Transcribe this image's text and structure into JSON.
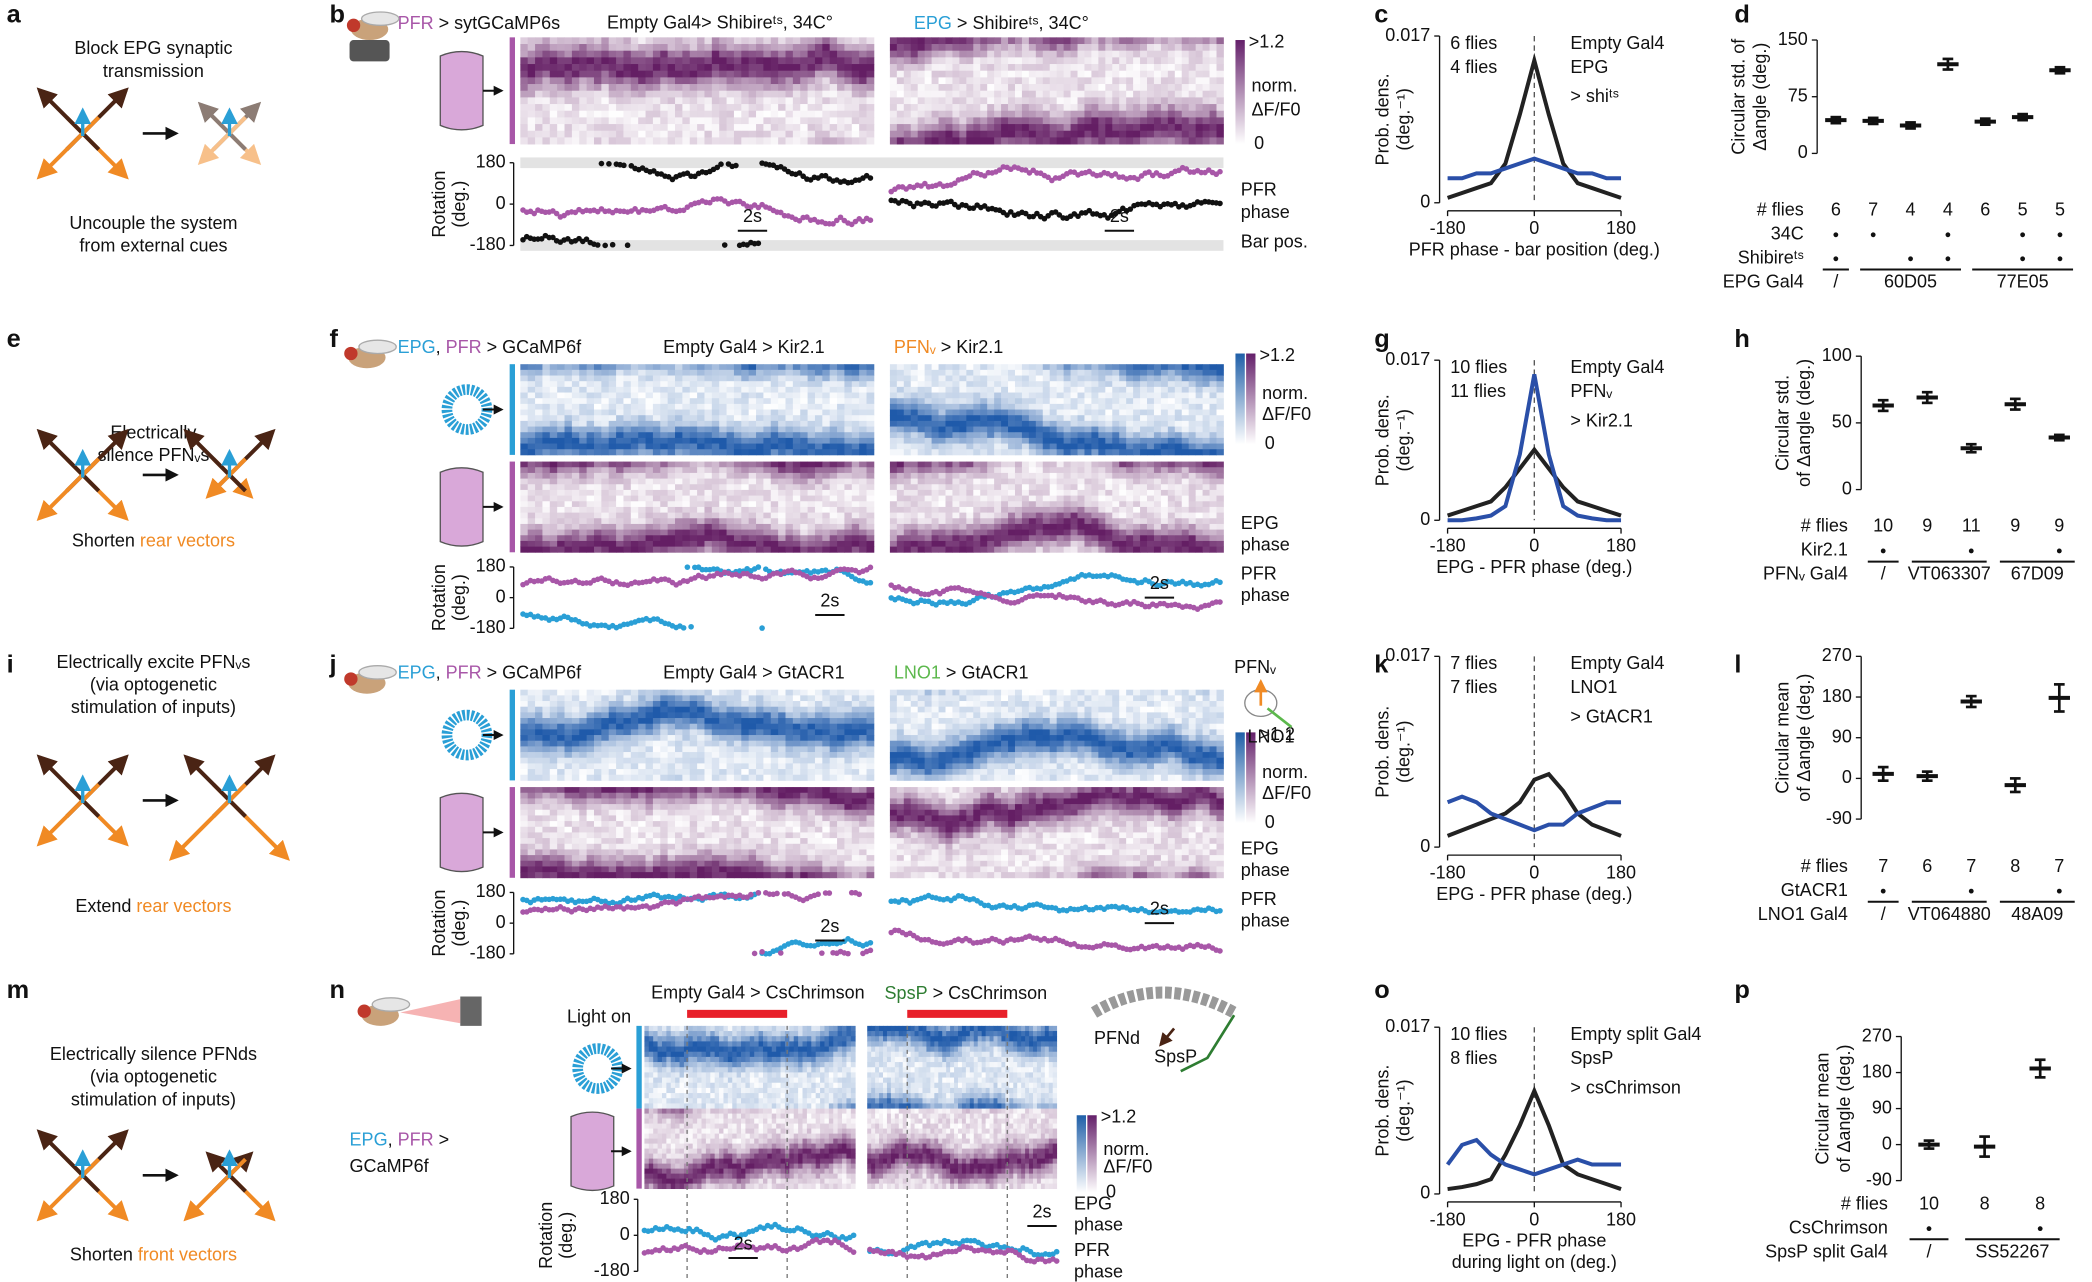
{
  "panels": {
    "a": {
      "letter": "a",
      "title": [
        "Block EPG synaptic",
        "transmission"
      ],
      "caption": [
        "Uncouple the system",
        "from external cues"
      ]
    },
    "e": {
      "letter": "e",
      "title": [
        "Electrically",
        "silence PFNᵥs"
      ],
      "caption": [
        "Shorten ",
        "rear vectors"
      ]
    },
    "i": {
      "letter": "i",
      "title": [
        "Electrically excite PFNᵥs",
        "(via optogenetic",
        "stimulation of inputs)"
      ],
      "caption": [
        "Extend ",
        "rear vectors"
      ]
    },
    "m": {
      "letter": "m",
      "title": [
        "Electrically silence PFNds",
        "(via optogenetic",
        "stimulation of inputs)"
      ],
      "caption": [
        "Shorten ",
        "front vectors"
      ]
    },
    "b": {
      "letter": "b",
      "genotype": [
        "PFR",
        " > sytGCaMP6s"
      ],
      "left": "Empty Gal4> Shibireᵗˢ, 34C°",
      "right": [
        "EPG",
        " > Shibireᵗˢ, 34C°"
      ],
      "colorbar": [
        ">1.2",
        "norm.",
        "ΔF/F0",
        "0"
      ],
      "yaxis": [
        "Rotation",
        "(deg.)"
      ],
      "rot_ticks": [
        180,
        0,
        -180
      ],
      "legend": [
        "PFR",
        "phase",
        "Bar pos."
      ],
      "scale": "2s"
    },
    "f": {
      "letter": "f",
      "genotype": [
        "EPG",
        ", ",
        "PFR",
        " > GCaMP6f"
      ],
      "left": "Empty Gal4 > Kir2.1",
      "right": [
        "PFNᵥ",
        " > Kir2.1"
      ],
      "colorbar": [
        ">1.2",
        "norm.",
        "ΔF/F0",
        "0"
      ],
      "yaxis": [
        "Rotation",
        "(deg.)"
      ],
      "rot_ticks": [
        180,
        0,
        -180
      ],
      "legend": [
        "EPG",
        "phase",
        "PFR",
        "phase"
      ],
      "scale": "2s"
    },
    "j": {
      "letter": "j",
      "genotype": [
        "EPG",
        ", ",
        "PFR",
        " > GCaMP6f"
      ],
      "left": "Empty Gal4 > GtACR1",
      "right": [
        "LNO1",
        " > GtACR1"
      ],
      "inset": [
        "PFNᵥ",
        "LNO1"
      ],
      "colorbar": [
        ">1.2",
        "norm.",
        "ΔF/F0",
        "0"
      ],
      "yaxis": [
        "Rotation",
        "(deg.)"
      ],
      "rot_ticks": [
        180,
        0,
        -180
      ],
      "legend": [
        "EPG",
        "phase",
        "PFR",
        "phase"
      ],
      "scale": "2s"
    },
    "n": {
      "letter": "n",
      "genotype": [
        "EPG",
        ", ",
        "PFR",
        " >",
        "GCaMP6f"
      ],
      "light": "Light on",
      "left": "Empty Gal4 > CsChrimson",
      "right": [
        "SpsP",
        " > CsChrimson"
      ],
      "inset": [
        "PFNd",
        "SpsP"
      ],
      "colorbar": [
        ">1.2",
        "norm.",
        "ΔF/F0",
        "0"
      ],
      "yaxis": [
        "Rotation",
        "(deg.)"
      ],
      "rot_ticks": [
        180,
        0,
        -180
      ],
      "legend": [
        "EPG",
        "phase",
        "PFR",
        "phase"
      ],
      "scale": "2s"
    }
  },
  "chart_data": [
    {
      "type": "density",
      "letter": "c",
      "ylabel": [
        "Prob. dens.",
        "(deg.⁻¹)"
      ],
      "xlabel": [
        "PFR phase - bar position (deg.)"
      ],
      "x": [
        -180,
        -150,
        -120,
        -90,
        -60,
        -30,
        0,
        30,
        60,
        90,
        120,
        150,
        180
      ],
      "xlim": [
        -180,
        180
      ],
      "xticks": [
        -180,
        0,
        180
      ],
      "ylim": [
        0,
        0.017
      ],
      "yticks": [
        0,
        0.017
      ],
      "series": [
        {
          "name": "6 flies",
          "color": "#222222",
          "values": [
            0.0005,
            0.001,
            0.0015,
            0.002,
            0.004,
            0.009,
            0.0145,
            0.009,
            0.004,
            0.002,
            0.0015,
            0.001,
            0.0005
          ]
        },
        {
          "name": "4 flies",
          "color": "#2a4fa8",
          "values": [
            0.0025,
            0.0025,
            0.003,
            0.003,
            0.0035,
            0.004,
            0.0045,
            0.004,
            0.0035,
            0.003,
            0.003,
            0.0025,
            0.0025
          ]
        }
      ],
      "annotations": [
        "Empty Gal4",
        "EPG",
        "> shiᵗˢ"
      ]
    },
    {
      "type": "dots",
      "letter": "d",
      "ylabel": [
        "Circular std. of",
        "Δangle (deg.)"
      ],
      "ylim": [
        0,
        150
      ],
      "yticks": [
        0,
        75,
        150
      ],
      "values": [
        44,
        43,
        37,
        118,
        42,
        48,
        110
      ],
      "errors": [
        4,
        4,
        4,
        7,
        4,
        4,
        4
      ],
      "rows": [
        {
          "label": "# flies",
          "values": [
            6,
            7,
            4,
            4,
            6,
            5,
            5
          ]
        },
        {
          "label": "34C",
          "marks": [
            true,
            true,
            false,
            true,
            false,
            true,
            true
          ]
        },
        {
          "label": "Shibireᵗˢ",
          "marks": [
            true,
            false,
            true,
            true,
            false,
            true,
            true
          ]
        }
      ],
      "gal4": {
        "label": "EPG Gal4",
        "groups": [
          {
            "label": "/",
            "size": 1
          },
          {
            "label": "60D05",
            "size": 3
          },
          {
            "label": "77E05",
            "size": 3
          }
        ]
      }
    },
    {
      "type": "density",
      "letter": "g",
      "ylabel": [
        "Prob. dens.",
        "(deg.⁻¹)"
      ],
      "xlabel": [
        "EPG - PFR phase (deg.)"
      ],
      "x": [
        -180,
        -150,
        -120,
        -90,
        -60,
        -30,
        0,
        30,
        60,
        90,
        120,
        150,
        180
      ],
      "xlim": [
        -180,
        180
      ],
      "xticks": [
        -180,
        0,
        180
      ],
      "ylim": [
        0,
        0.017
      ],
      "yticks": [
        0,
        0.017
      ],
      "series": [
        {
          "name": "10 flies",
          "color": "#222222",
          "values": [
            0.0005,
            0.001,
            0.0015,
            0.002,
            0.0035,
            0.0055,
            0.0075,
            0.0055,
            0.0035,
            0.002,
            0.0015,
            0.001,
            0.0005
          ]
        },
        {
          "name": "11 flies",
          "color": "#2a4fa8",
          "values": [
            0,
            0,
            0.0002,
            0.0005,
            0.0015,
            0.007,
            0.0155,
            0.007,
            0.0015,
            0.0005,
            0.0002,
            0,
            0
          ]
        }
      ],
      "annotations": [
        "Empty Gal4",
        "PFNᵥ",
        "> Kir2.1"
      ]
    },
    {
      "type": "dots",
      "letter": "h",
      "ylabel": [
        "Circular std.",
        "of Δangle (deg.)"
      ],
      "ylim": [
        0,
        100
      ],
      "yticks": [
        0,
        50,
        100
      ],
      "values": [
        63,
        69,
        31,
        64,
        39
      ],
      "errors": [
        4,
        4,
        3,
        4,
        2
      ],
      "rows": [
        {
          "label": "# flies",
          "values": [
            10,
            9,
            11,
            9,
            9
          ]
        },
        {
          "label": "Kir2.1",
          "marks": [
            true,
            false,
            true,
            false,
            true
          ]
        }
      ],
      "gal4": {
        "label": "PFNᵥ Gal4",
        "groups": [
          {
            "label": "/",
            "size": 1
          },
          {
            "label": "VT063307",
            "size": 2
          },
          {
            "label": "67D09",
            "size": 2
          }
        ]
      }
    },
    {
      "type": "density",
      "letter": "k",
      "ylabel": [
        "Prob. dens.",
        "(deg.⁻¹)"
      ],
      "xlabel": [
        "EPG - PFR phase (deg.)"
      ],
      "x": [
        -180,
        -150,
        -120,
        -90,
        -60,
        -30,
        0,
        30,
        60,
        90,
        120,
        150,
        180
      ],
      "xlim": [
        -180,
        180
      ],
      "xticks": [
        -180,
        0,
        180
      ],
      "ylim": [
        0,
        0.017
      ],
      "yticks": [
        0,
        0.017
      ],
      "series": [
        {
          "name": "7 flies",
          "color": "#222222",
          "values": [
            0.001,
            0.0015,
            0.002,
            0.0025,
            0.003,
            0.004,
            0.006,
            0.0065,
            0.005,
            0.003,
            0.002,
            0.0015,
            0.001
          ]
        },
        {
          "name": "7 flies",
          "color": "#2a4fa8",
          "values": [
            0.004,
            0.0045,
            0.004,
            0.003,
            0.0025,
            0.002,
            0.0015,
            0.002,
            0.002,
            0.003,
            0.0035,
            0.004,
            0.004
          ]
        }
      ],
      "annotations": [
        "Empty Gal4",
        "LNO1",
        "> GtACR1"
      ]
    },
    {
      "type": "dots",
      "letter": "l",
      "ylabel": [
        "Circular mean",
        "of Δangle (deg.)"
      ],
      "ylim": [
        -90,
        270
      ],
      "yticks": [
        -90,
        0,
        90,
        180,
        270
      ],
      "values": [
        10,
        5,
        170,
        -15,
        178
      ],
      "errors": [
        15,
        10,
        12,
        15,
        30
      ],
      "rows": [
        {
          "label": "# flies",
          "values": [
            7,
            6,
            7,
            8,
            7
          ]
        },
        {
          "label": "GtACR1",
          "marks": [
            true,
            false,
            true,
            false,
            true
          ]
        }
      ],
      "gal4": {
        "label": "LNO1 Gal4",
        "groups": [
          {
            "label": "/",
            "size": 1
          },
          {
            "label": "VT064880",
            "size": 2
          },
          {
            "label": "48A09",
            "size": 2
          }
        ]
      }
    },
    {
      "type": "density",
      "letter": "o",
      "ylabel": [
        "Prob. dens.",
        "(deg.⁻¹)"
      ],
      "xlabel": [
        "EPG - PFR phase",
        "during light on (deg.)"
      ],
      "x": [
        -180,
        -150,
        -120,
        -90,
        -60,
        -30,
        0,
        30,
        60,
        90,
        120,
        150,
        180
      ],
      "xlim": [
        -180,
        180
      ],
      "xticks": [
        -180,
        0,
        180
      ],
      "ylim": [
        0,
        0.017
      ],
      "yticks": [
        0,
        0.017
      ],
      "series": [
        {
          "name": "10 flies",
          "color": "#222222",
          "values": [
            0.0005,
            0.0007,
            0.001,
            0.0015,
            0.004,
            0.007,
            0.0105,
            0.007,
            0.003,
            0.002,
            0.0015,
            0.001,
            0.0005
          ]
        },
        {
          "name": "8 flies",
          "color": "#2a4fa8",
          "values": [
            0.003,
            0.005,
            0.0055,
            0.004,
            0.003,
            0.0025,
            0.002,
            0.0025,
            0.003,
            0.0035,
            0.003,
            0.003,
            0.003
          ]
        }
      ],
      "annotations": [
        "Empty split Gal4",
        "SpsP",
        "> csChrimson"
      ]
    },
    {
      "type": "dots",
      "letter": "p",
      "ylabel": [
        "Circular mean",
        "of Δangle (deg.)"
      ],
      "ylim": [
        -90,
        270
      ],
      "yticks": [
        -90,
        0,
        90,
        180,
        270
      ],
      "values": [
        0,
        -5,
        190
      ],
      "errors": [
        10,
        25,
        22
      ],
      "rows": [
        {
          "label": "# flies",
          "values": [
            10,
            8,
            8
          ]
        },
        {
          "label": "CsChrimson",
          "marks": [
            true,
            false,
            true
          ]
        }
      ],
      "gal4": {
        "label": "SpsP split Gal4",
        "groups": [
          {
            "label": "/",
            "size": 1
          },
          {
            "label": "SS52267",
            "size": 2
          }
        ]
      }
    }
  ]
}
